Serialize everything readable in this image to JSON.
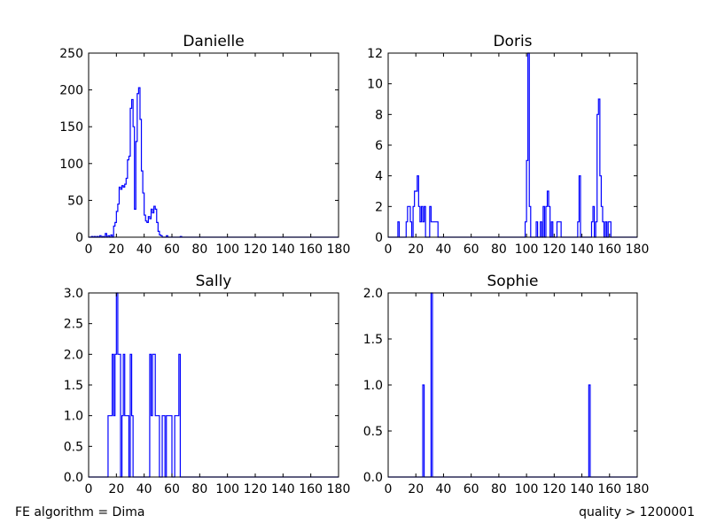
{
  "footer": {
    "left": "FE algorithm = Dima",
    "right": "quality > 1200001"
  },
  "colors": {
    "series": "#0000ff",
    "axes": "#000000",
    "background": "#ffffff"
  },
  "chart_data": [
    {
      "type": "histogram",
      "title": "Danielle",
      "xlim": [
        0,
        180
      ],
      "ylim": [
        0,
        250
      ],
      "xticks": [
        0,
        20,
        40,
        60,
        80,
        100,
        120,
        140,
        160,
        180
      ],
      "yticks": [
        0,
        50,
        100,
        150,
        200,
        250
      ],
      "ytick_labels": [
        "0",
        "50",
        "100",
        "150",
        "200",
        "250"
      ],
      "grid": false,
      "bins": [
        [
          2,
          1
        ],
        [
          4,
          1
        ],
        [
          6,
          1
        ],
        [
          8,
          2
        ],
        [
          10,
          1
        ],
        [
          12,
          5
        ],
        [
          14,
          2
        ],
        [
          16,
          3
        ],
        [
          18,
          15
        ],
        [
          19,
          20
        ],
        [
          20,
          35
        ],
        [
          21,
          45
        ],
        [
          22,
          68
        ],
        [
          23,
          65
        ],
        [
          24,
          70
        ],
        [
          25,
          68
        ],
        [
          26,
          72
        ],
        [
          27,
          80
        ],
        [
          28,
          105
        ],
        [
          29,
          110
        ],
        [
          30,
          175
        ],
        [
          31,
          187
        ],
        [
          32,
          150
        ],
        [
          33,
          38
        ],
        [
          34,
          130
        ],
        [
          35,
          195
        ],
        [
          36,
          203
        ],
        [
          37,
          160
        ],
        [
          38,
          90
        ],
        [
          39,
          60
        ],
        [
          40,
          30
        ],
        [
          41,
          22
        ],
        [
          42,
          20
        ],
        [
          43,
          28
        ],
        [
          44,
          25
        ],
        [
          45,
          38
        ],
        [
          46,
          33
        ],
        [
          47,
          42
        ],
        [
          48,
          38
        ],
        [
          49,
          20
        ],
        [
          50,
          8
        ],
        [
          51,
          3
        ],
        [
          52,
          2
        ],
        [
          56,
          2
        ],
        [
          66,
          1
        ]
      ]
    },
    {
      "type": "histogram",
      "title": "Doris",
      "xlim": [
        0,
        180
      ],
      "ylim": [
        0,
        12
      ],
      "xticks": [
        0,
        20,
        40,
        60,
        80,
        100,
        120,
        140,
        160,
        180
      ],
      "yticks": [
        0,
        2,
        4,
        6,
        8,
        10,
        12
      ],
      "ytick_labels": [
        "0",
        "2",
        "4",
        "6",
        "8",
        "10",
        "12"
      ],
      "grid": false,
      "bins": [
        [
          7,
          1
        ],
        [
          13,
          1
        ],
        [
          14,
          2
        ],
        [
          15,
          2
        ],
        [
          16,
          1
        ],
        [
          18,
          2
        ],
        [
          19,
          3
        ],
        [
          20,
          3
        ],
        [
          21,
          4
        ],
        [
          22,
          2
        ],
        [
          23,
          1
        ],
        [
          24,
          2
        ],
        [
          25,
          1
        ],
        [
          26,
          2
        ],
        [
          30,
          2
        ],
        [
          31,
          1
        ],
        [
          32,
          1
        ],
        [
          33,
          1
        ],
        [
          34,
          1
        ],
        [
          35,
          1
        ],
        [
          99,
          1
        ],
        [
          100,
          5
        ],
        [
          101,
          12
        ],
        [
          102,
          2
        ],
        [
          107,
          1
        ],
        [
          110,
          1
        ],
        [
          112,
          2
        ],
        [
          114,
          2
        ],
        [
          115,
          3
        ],
        [
          116,
          2
        ],
        [
          118,
          1
        ],
        [
          122,
          1
        ],
        [
          123,
          1
        ],
        [
          124,
          1
        ],
        [
          137,
          1
        ],
        [
          138,
          4
        ],
        [
          147,
          1
        ],
        [
          148,
          2
        ],
        [
          150,
          1
        ],
        [
          151,
          8
        ],
        [
          152,
          9
        ],
        [
          153,
          4
        ],
        [
          154,
          2
        ],
        [
          155,
          1
        ],
        [
          157,
          1
        ],
        [
          159,
          1
        ],
        [
          160,
          1
        ]
      ]
    },
    {
      "type": "histogram",
      "title": "Sally",
      "xlim": [
        0,
        180
      ],
      "ylim": [
        0,
        3
      ],
      "xticks": [
        0,
        20,
        40,
        60,
        80,
        100,
        120,
        140,
        160,
        180
      ],
      "yticks": [
        0,
        0.5,
        1,
        1.5,
        2,
        2.5,
        3
      ],
      "ytick_labels": [
        "0.0",
        "0.5",
        "1.0",
        "1.5",
        "2.0",
        "2.5",
        "3.0"
      ],
      "grid": false,
      "bins": [
        [
          14,
          1
        ],
        [
          15,
          1
        ],
        [
          16,
          1
        ],
        [
          17,
          2
        ],
        [
          18,
          1
        ],
        [
          19,
          2
        ],
        [
          20,
          3
        ],
        [
          21,
          2
        ],
        [
          22,
          2
        ],
        [
          24,
          1
        ],
        [
          25,
          2
        ],
        [
          26,
          1
        ],
        [
          27,
          1
        ],
        [
          28,
          1
        ],
        [
          30,
          2
        ],
        [
          31,
          1
        ],
        [
          44,
          2
        ],
        [
          45,
          1
        ],
        [
          46,
          2
        ],
        [
          47,
          2
        ],
        [
          48,
          1
        ],
        [
          49,
          1
        ],
        [
          50,
          1
        ],
        [
          53,
          1
        ],
        [
          54,
          1
        ],
        [
          56,
          1
        ],
        [
          57,
          1
        ],
        [
          58,
          1
        ],
        [
          59,
          1
        ],
        [
          62,
          1
        ],
        [
          63,
          1
        ],
        [
          64,
          1
        ],
        [
          65,
          2
        ]
      ]
    },
    {
      "type": "histogram",
      "title": "Sophie",
      "xlim": [
        0,
        180
      ],
      "ylim": [
        0,
        2
      ],
      "xticks": [
        0,
        20,
        40,
        60,
        80,
        100,
        120,
        140,
        160,
        180
      ],
      "yticks": [
        0,
        0.5,
        1,
        1.5,
        2
      ],
      "ytick_labels": [
        "0.0",
        "0.5",
        "1.0",
        "1.5",
        "2.0"
      ],
      "grid": false,
      "bins": [
        [
          25,
          1
        ],
        [
          31,
          2
        ],
        [
          145,
          1
        ]
      ]
    }
  ]
}
